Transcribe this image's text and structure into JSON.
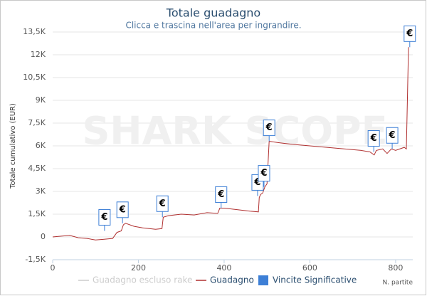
{
  "chart_data": {
    "type": "line",
    "title": "Totale guadagno",
    "subtitle": "Clicca e trascina nell'area per ingrandire.",
    "y_label": "Totale cumulativo (EUR)",
    "x_label": "N. partite",
    "watermark": "SHARK SCOPE",
    "flag_label": "€",
    "xlim": [
      0,
      840
    ],
    "xticks": [
      0,
      200,
      400,
      600,
      800
    ],
    "ylim": [
      -1500,
      13500
    ],
    "yticks": [
      {
        "value": -1500,
        "label": "-1,5K"
      },
      0,
      {
        "value": 1500,
        "label": "1,5K"
      },
      {
        "value": 3000,
        "label": "3K"
      },
      {
        "value": 4500,
        "label": "4,5K"
      },
      {
        "value": 6000,
        "label": "6K"
      },
      {
        "value": 7500,
        "label": "7,5K"
      },
      {
        "value": 9000,
        "label": "9K"
      },
      {
        "value": 10500,
        "label": "10,5K"
      },
      {
        "value": 12000,
        "label": "12K"
      },
      {
        "value": 13500,
        "label": "13,5K"
      }
    ],
    "grid": true,
    "series": [
      {
        "name": "Guadagno escluso rake",
        "color": "#cccccc",
        "visible": false,
        "x": [],
        "values": []
      },
      {
        "name": "Guadagno",
        "color": "#b03030",
        "visible": true,
        "x": [
          0,
          20,
          40,
          60,
          80,
          100,
          120,
          140,
          145,
          150,
          160,
          165,
          170,
          190,
          210,
          240,
          255,
          258,
          270,
          300,
          330,
          360,
          385,
          390,
          400,
          430,
          460,
          480,
          482,
          485,
          490,
          495,
          500,
          505,
          530,
          560,
          600,
          640,
          680,
          720,
          740,
          750,
          755,
          770,
          780,
          790,
          800,
          820,
          825,
          830
        ],
        "values": [
          0,
          50,
          100,
          -50,
          -100,
          -200,
          -150,
          -100,
          100,
          300,
          400,
          800,
          900,
          700,
          600,
          500,
          550,
          1300,
          1400,
          1500,
          1450,
          1600,
          1550,
          1900,
          1900,
          1800,
          1700,
          1650,
          2600,
          2800,
          2900,
          3300,
          3500,
          6300,
          6200,
          6100,
          6000,
          5900,
          5800,
          5700,
          5600,
          5400,
          5700,
          5800,
          5500,
          5800,
          5700,
          5900,
          5800,
          12500
        ]
      },
      {
        "name": "Vincite Significative",
        "color": "#3d7fd6",
        "visible": true,
        "x": [
          121,
          163,
          256,
          393,
          478,
          493,
          505,
          749,
          792,
          833
        ],
        "values": [
          400,
          900,
          1300,
          1900,
          2700,
          3300,
          6300,
          5600,
          5800,
          12500
        ]
      }
    ]
  }
}
